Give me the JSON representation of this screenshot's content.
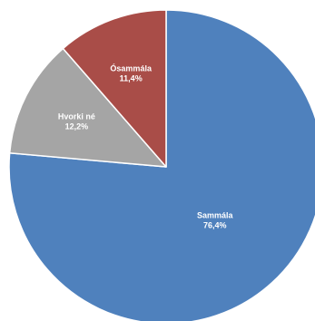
{
  "chart_data": {
    "type": "pie",
    "title": "",
    "legend": "none",
    "start_angle_deg": 0,
    "direction": "clockwise",
    "slices": [
      {
        "name": "Sammála",
        "value": 76.4,
        "label": "76,4%",
        "color": "#4F81BD"
      },
      {
        "name": "Hvorki né",
        "value": 12.2,
        "label": "12,2%",
        "color": "#A5A5A5"
      },
      {
        "name": "Ósammála",
        "value": 11.4,
        "label": "11,4%",
        "color": "#A94D48"
      }
    ]
  }
}
